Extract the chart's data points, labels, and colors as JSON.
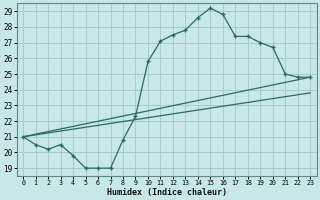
{
  "title": "",
  "xlabel": "Humidex (Indice chaleur)",
  "ylabel": "",
  "background_color": "#c8e8e8",
  "grid_color": "#a8cccc",
  "line_color": "#2a6b60",
  "xlim": [
    -0.5,
    23.5
  ],
  "ylim": [
    18.5,
    29.5
  ],
  "yticks": [
    19,
    20,
    21,
    22,
    23,
    24,
    25,
    26,
    27,
    28,
    29
  ],
  "xticks": [
    0,
    1,
    2,
    3,
    4,
    5,
    6,
    7,
    8,
    9,
    10,
    11,
    12,
    13,
    14,
    15,
    16,
    17,
    18,
    19,
    20,
    21,
    22,
    23
  ],
  "curve1_x": [
    0,
    1,
    2,
    3,
    4,
    5,
    6,
    7,
    8,
    9,
    10,
    11,
    12,
    13,
    14,
    15,
    16,
    17,
    18,
    19,
    20,
    21,
    22,
    23
  ],
  "curve1_y": [
    21.0,
    20.5,
    20.2,
    20.5,
    19.8,
    19.0,
    19.0,
    19.0,
    20.8,
    22.3,
    25.8,
    27.1,
    27.5,
    27.8,
    28.6,
    29.2,
    28.8,
    27.4,
    27.4,
    27.0,
    26.7,
    25.0,
    24.8,
    24.8
  ],
  "line2_x": [
    0,
    23
  ],
  "line2_y": [
    21.0,
    24.8
  ],
  "line3_x": [
    0,
    23
  ],
  "line3_y": [
    21.0,
    23.8
  ],
  "figsize": [
    3.2,
    2.0
  ],
  "dpi": 100
}
